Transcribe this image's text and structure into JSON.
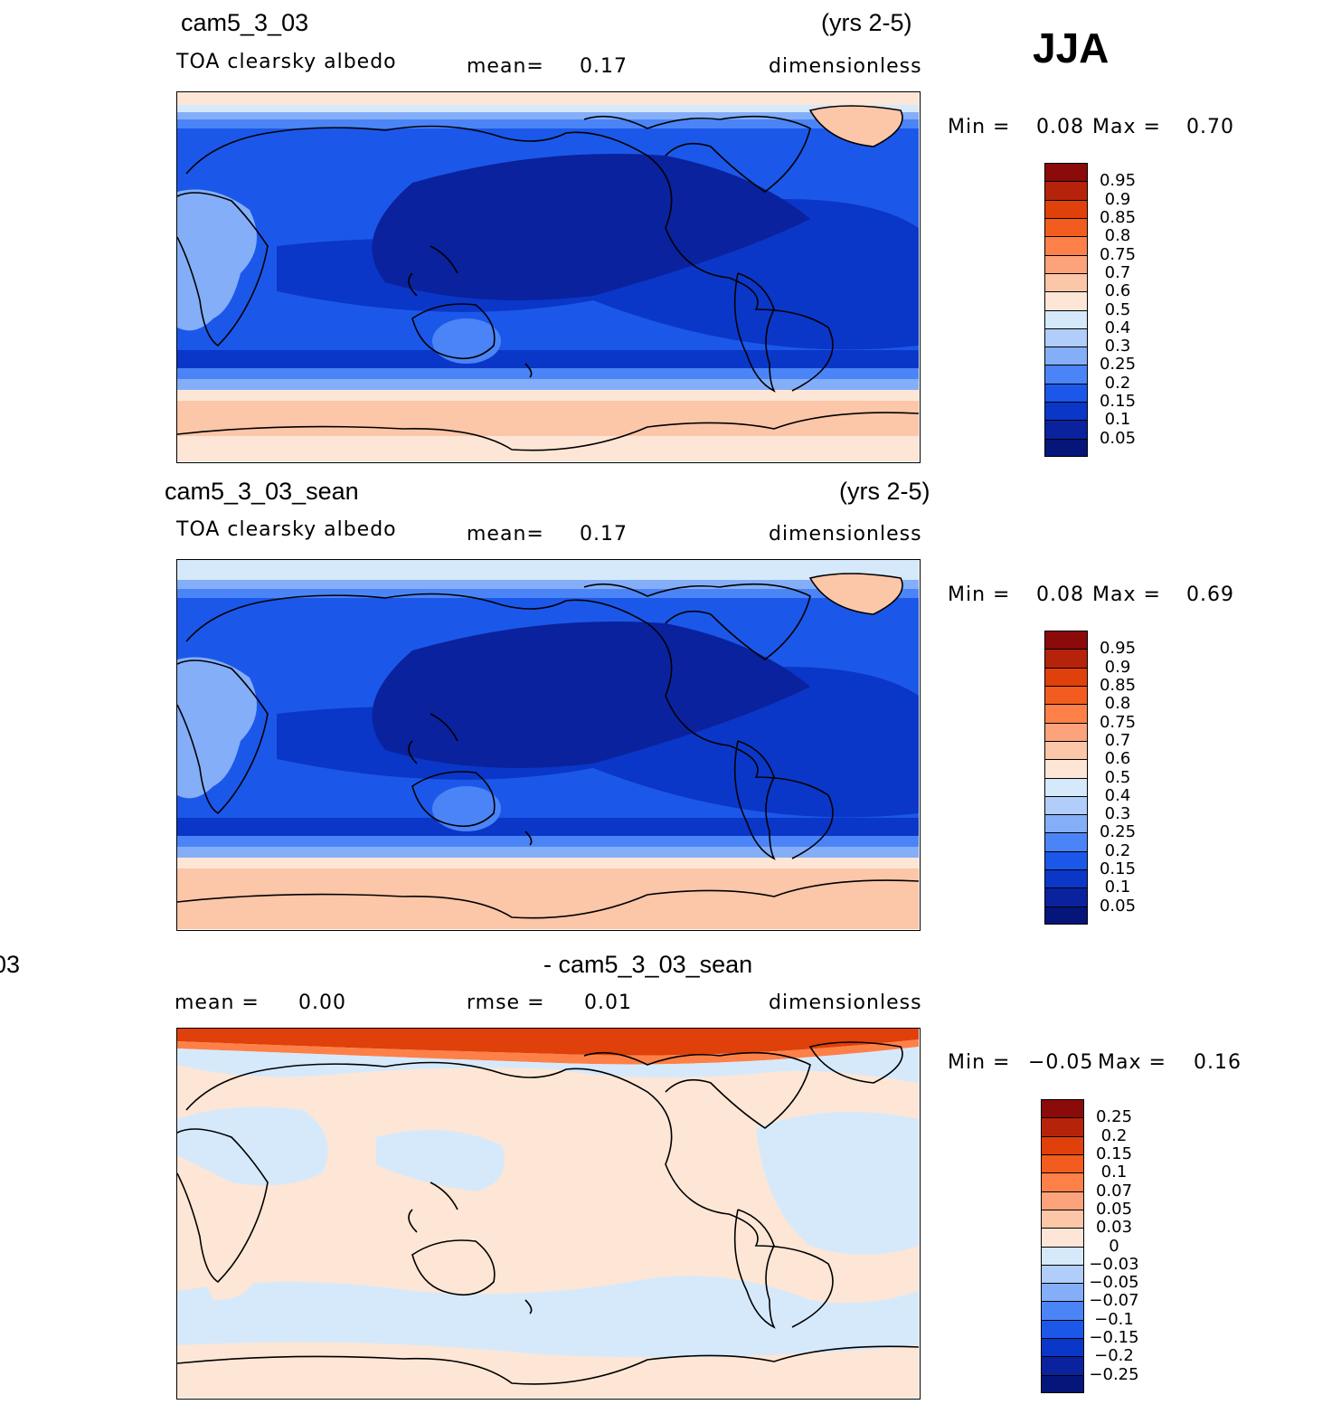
{
  "season": "JJA",
  "panels": [
    {
      "title": "cam5_3_03",
      "years": "(yrs 2-5)",
      "variable": "TOA  clearsky  albedo",
      "mean_label": "mean=",
      "mean_value": "0.17",
      "units": "dimensionless",
      "min_label": "Min  =",
      "min_value": "0.08",
      "max_label": "Max  =",
      "max_value": "0.70",
      "colorbar_labels": [
        "0.95",
        "0.9",
        "0.85",
        "0.8",
        "0.75",
        "0.7",
        "0.6",
        "0.5",
        "0.4",
        "0.3",
        "0.25",
        "0.2",
        "0.15",
        "0.1",
        "0.05"
      ]
    },
    {
      "title": "cam5_3_03_sean",
      "years": "(yrs 2-5)",
      "variable": "TOA  clearsky  albedo",
      "mean_label": "mean=",
      "mean_value": "0.17",
      "units": "dimensionless",
      "min_label": "Min  =",
      "min_value": "0.08",
      "max_label": "Max  =",
      "max_value": "0.69",
      "colorbar_labels": [
        "0.95",
        "0.9",
        "0.85",
        "0.8",
        "0.75",
        "0.7",
        "0.6",
        "0.5",
        "0.4",
        "0.3",
        "0.25",
        "0.2",
        "0.15",
        "0.1",
        "0.05"
      ]
    },
    {
      "title_left": "03",
      "title": "- cam5_3_03_sean",
      "mean_label": "mean  =",
      "mean_value": "0.00",
      "rmse_label": "rmse  =",
      "rmse_value": "0.01",
      "units": "dimensionless",
      "min_label": "Min  =",
      "min_value": "−0.05",
      "max_label": "Max  =",
      "max_value": "0.16",
      "colorbar_labels": [
        "0.25",
        "0.2",
        "0.15",
        "0.1",
        "0.07",
        "0.05",
        "0.03",
        "0",
        "−0.03",
        "−0.05",
        "−0.07",
        "−0.1",
        "−0.15",
        "−0.2",
        "−0.25"
      ]
    }
  ],
  "colors": {
    "colorbar": [
      "#8b0a0a",
      "#b5240a",
      "#e0400a",
      "#f25c1e",
      "#fd8048",
      "#fca37c",
      "#fcc6a8",
      "#fde6d6",
      "#d6e9fb",
      "#b1cdf9",
      "#84aef8",
      "#4b84f6",
      "#1b58ea",
      "#0a37c8",
      "#0a229e",
      "#06157a"
    ],
    "land_outline": "#000000",
    "frame": "#000000"
  }
}
